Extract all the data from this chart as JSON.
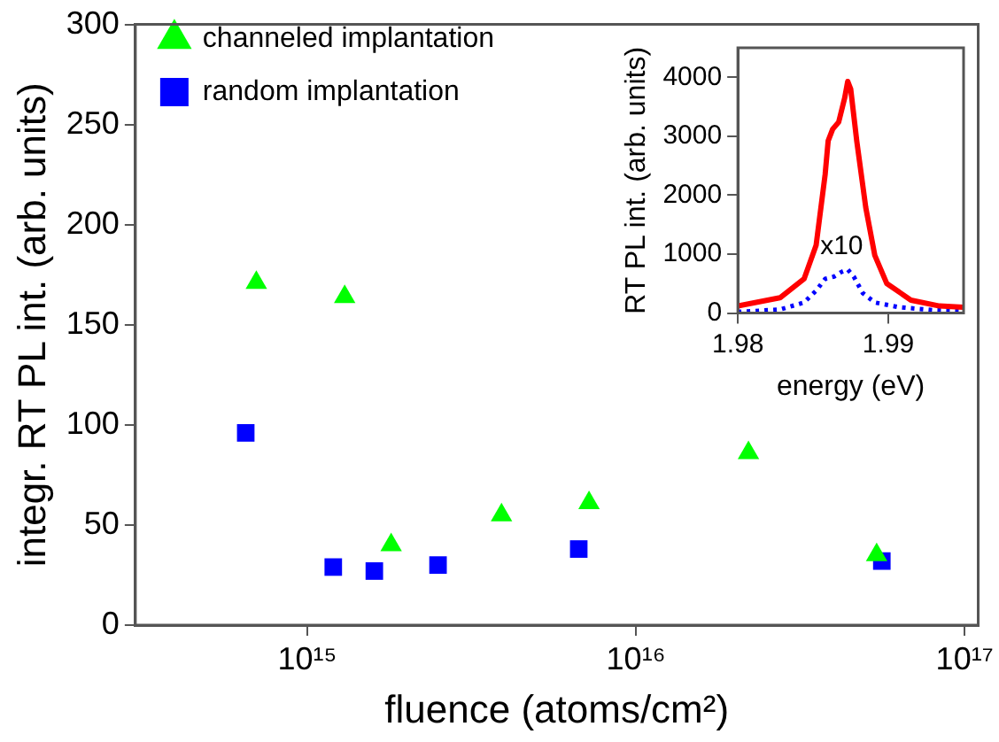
{
  "chart_data": [
    {
      "type": "scatter",
      "xlabel": "fluence (atoms/cm²)",
      "ylabel": "integr. RT PL int. (arb. units)",
      "log": "x",
      "xlim": [
        300000000000000.0,
        1.1e+17
      ],
      "xticks": [
        {
          "value": 1000000000000000.0,
          "label": "10¹⁵"
        },
        {
          "value": 1e+16,
          "label": "10¹⁶"
        },
        {
          "value": 1e+17,
          "label": "10¹⁷"
        }
      ],
      "ylim": [
        0,
        300
      ],
      "yticks": [
        0,
        50,
        100,
        150,
        200,
        250,
        300
      ],
      "legend": "top left",
      "grid": false,
      "series": [
        {
          "name": "channeled implantation",
          "color": "#00ff00",
          "marker": "triangle",
          "x": [
            700000000000000.0,
            1300000000000000.0,
            1800000000000000.0,
            3900000000000000.0,
            7200000000000000.0,
            2.2e+16,
            5.4e+16
          ],
          "values": [
            171,
            164,
            40,
            55,
            61,
            86,
            35
          ]
        },
        {
          "name": "random implantation",
          "color": "#0000ff",
          "marker": "square",
          "x": [
            650000000000000.0,
            1200000000000000.0,
            1600000000000000.0,
            2500000000000000.0,
            6700000000000000.0,
            5.6e+16
          ],
          "values": [
            96,
            29,
            27,
            30,
            38,
            32
          ]
        }
      ]
    },
    {
      "type": "line",
      "xlabel": "energy (eV)",
      "ylabel": "RT PL int. (arb. units)",
      "xlim": [
        1.98,
        1.995
      ],
      "xticks": [
        1.98,
        1.99
      ],
      "ylim": [
        0,
        4500
      ],
      "yticks": [
        0,
        1000,
        2000,
        3000,
        4000
      ],
      "grid": false,
      "annotations": [
        "x10"
      ],
      "series": [
        {
          "color": "#ff0000",
          "x": [
            1.98,
            1.9828,
            1.9844,
            1.9852,
            1.9858,
            1.986,
            1.9863,
            1.9867,
            1.9871,
            1.9873,
            1.9875,
            1.9879,
            1.9885,
            1.9891,
            1.9899,
            1.9915,
            1.9934,
            1.995
          ],
          "values": [
            120,
            260,
            580,
            1150,
            2350,
            2920,
            3120,
            3240,
            3650,
            3930,
            3800,
            2920,
            1790,
            980,
            500,
            220,
            120,
            100
          ]
        },
        {
          "color": "#0000ff",
          "line_style": "dotted",
          "x": [
            1.98,
            1.9828,
            1.9844,
            1.9852,
            1.9858,
            1.9864,
            1.9869,
            1.9873,
            1.9877,
            1.9883,
            1.9891,
            1.9907,
            1.993,
            1.995
          ],
          "values": [
            20,
            60,
            180,
            380,
            580,
            620,
            700,
            740,
            620,
            340,
            180,
            100,
            50,
            30
          ]
        }
      ]
    }
  ]
}
